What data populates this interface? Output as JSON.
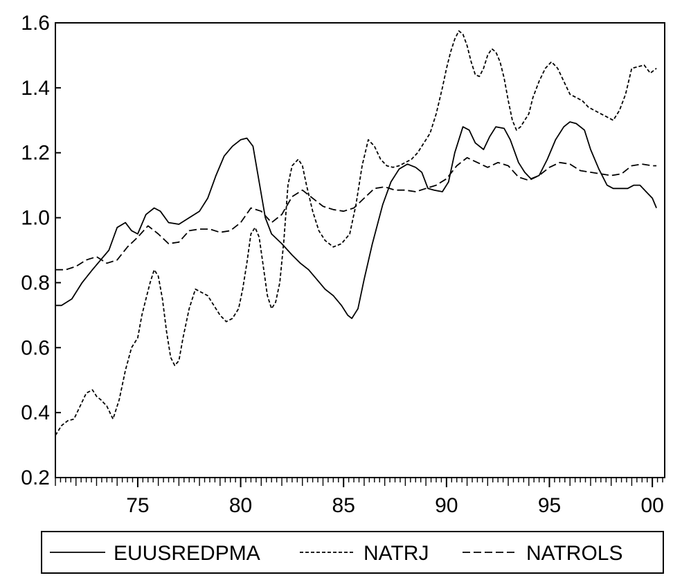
{
  "chart_data": {
    "type": "line",
    "title": "",
    "xlabel": "",
    "ylabel": "",
    "xlim": [
      1971,
      2000.6
    ],
    "ylim": [
      0.2,
      1.6
    ],
    "y_ticks": [
      {
        "value": 0.2,
        "label": "0.2"
      },
      {
        "value": 0.4,
        "label": "0.4"
      },
      {
        "value": 0.6,
        "label": "0.6"
      },
      {
        "value": 0.8,
        "label": "0.8"
      },
      {
        "value": 1.0,
        "label": "1.0"
      },
      {
        "value": 1.2,
        "label": "1.2"
      },
      {
        "value": 1.4,
        "label": "1.4"
      },
      {
        "value": 1.6,
        "label": "1.6"
      }
    ],
    "x_ticks": [
      {
        "value": 1975,
        "label": "75"
      },
      {
        "value": 1980,
        "label": "80"
      },
      {
        "value": 1985,
        "label": "85"
      },
      {
        "value": 1990,
        "label": "90"
      },
      {
        "value": 1995,
        "label": "95"
      },
      {
        "value": 2000,
        "label": "00"
      }
    ],
    "grid": false,
    "legend_position": "bottom",
    "series": [
      {
        "name": "EUUSREDPMA",
        "dash": "solid",
        "color": "#000000",
        "x": [
          1971.0,
          1971.3,
          1971.8,
          1972.3,
          1972.8,
          1973.2,
          1973.6,
          1974.0,
          1974.4,
          1974.7,
          1975.0,
          1975.4,
          1975.8,
          1976.1,
          1976.5,
          1977.0,
          1977.5,
          1978.0,
          1978.4,
          1978.8,
          1979.2,
          1979.6,
          1980.0,
          1980.3,
          1980.6,
          1980.9,
          1981.2,
          1981.5,
          1982.0,
          1982.5,
          1982.9,
          1983.3,
          1983.7,
          1984.1,
          1984.5,
          1984.9,
          1985.2,
          1985.4,
          1985.7,
          1986.0,
          1986.4,
          1986.9,
          1987.3,
          1987.7,
          1988.1,
          1988.5,
          1988.8,
          1989.1,
          1989.4,
          1989.8,
          1990.1,
          1990.4,
          1990.8,
          1991.1,
          1991.4,
          1991.8,
          1992.1,
          1992.4,
          1992.8,
          1993.1,
          1993.5,
          1993.8,
          1994.1,
          1994.5,
          1994.9,
          1995.3,
          1995.7,
          1996.0,
          1996.3,
          1996.7,
          1997.0,
          1997.4,
          1997.8,
          1998.1,
          1998.4,
          1998.8,
          1999.1,
          1999.4,
          1999.7,
          2000.0,
          2000.2
        ],
        "y": [
          0.73,
          0.73,
          0.75,
          0.8,
          0.84,
          0.87,
          0.9,
          0.97,
          0.985,
          0.96,
          0.95,
          1.01,
          1.03,
          1.02,
          0.985,
          0.98,
          1.0,
          1.02,
          1.06,
          1.13,
          1.19,
          1.22,
          1.24,
          1.245,
          1.22,
          1.11,
          1.0,
          0.95,
          0.92,
          0.885,
          0.86,
          0.84,
          0.81,
          0.78,
          0.76,
          0.73,
          0.7,
          0.69,
          0.72,
          0.81,
          0.92,
          1.04,
          1.11,
          1.15,
          1.165,
          1.155,
          1.14,
          1.09,
          1.085,
          1.08,
          1.11,
          1.2,
          1.28,
          1.27,
          1.23,
          1.21,
          1.25,
          1.28,
          1.275,
          1.24,
          1.17,
          1.14,
          1.12,
          1.13,
          1.18,
          1.24,
          1.28,
          1.295,
          1.29,
          1.27,
          1.21,
          1.15,
          1.1,
          1.09,
          1.09,
          1.09,
          1.1,
          1.1,
          1.08,
          1.06,
          1.03
        ]
      },
      {
        "name": "NATRJ",
        "dash": "dotted",
        "color": "#000000",
        "x": [
          1971.0,
          1971.3,
          1971.6,
          1971.9,
          1972.2,
          1972.5,
          1972.8,
          1973.0,
          1973.2,
          1973.5,
          1973.8,
          1974.1,
          1974.4,
          1974.7,
          1975.0,
          1975.2,
          1975.4,
          1975.6,
          1975.8,
          1976.0,
          1976.2,
          1976.4,
          1976.6,
          1976.8,
          1977.0,
          1977.2,
          1977.5,
          1977.8,
          1978.1,
          1978.4,
          1978.7,
          1979.0,
          1979.3,
          1979.6,
          1979.9,
          1980.1,
          1980.3,
          1980.5,
          1980.7,
          1980.9,
          1981.1,
          1981.3,
          1981.5,
          1981.7,
          1981.9,
          1982.1,
          1982.3,
          1982.5,
          1982.8,
          1983.0,
          1983.2,
          1983.5,
          1983.8,
          1984.1,
          1984.5,
          1984.9,
          1985.3,
          1985.6,
          1985.9,
          1986.2,
          1986.5,
          1986.8,
          1987.1,
          1987.4,
          1987.7,
          1988.0,
          1988.3,
          1988.6,
          1988.9,
          1989.2,
          1989.5,
          1989.8,
          1990.0,
          1990.2,
          1990.4,
          1990.6,
          1990.8,
          1991.0,
          1991.2,
          1991.4,
          1991.6,
          1991.8,
          1992.0,
          1992.2,
          1992.4,
          1992.6,
          1992.8,
          1993.0,
          1993.2,
          1993.4,
          1993.6,
          1993.8,
          1994.0,
          1994.2,
          1994.5,
          1994.8,
          1995.1,
          1995.4,
          1995.7,
          1996.0,
          1996.3,
          1996.6,
          1996.9,
          1997.2,
          1997.5,
          1997.8,
          1998.1,
          1998.4,
          1998.7,
          1999.0,
          1999.3,
          1999.6,
          1999.9,
          2000.2
        ],
        "y": [
          0.33,
          0.36,
          0.375,
          0.38,
          0.42,
          0.46,
          0.47,
          0.45,
          0.44,
          0.42,
          0.38,
          0.44,
          0.53,
          0.6,
          0.63,
          0.7,
          0.75,
          0.8,
          0.84,
          0.82,
          0.75,
          0.65,
          0.57,
          0.545,
          0.56,
          0.63,
          0.72,
          0.78,
          0.77,
          0.76,
          0.73,
          0.7,
          0.68,
          0.69,
          0.72,
          0.78,
          0.86,
          0.95,
          0.97,
          0.94,
          0.85,
          0.76,
          0.72,
          0.74,
          0.8,
          0.93,
          1.1,
          1.16,
          1.18,
          1.16,
          1.1,
          1.02,
          0.96,
          0.93,
          0.91,
          0.92,
          0.95,
          1.04,
          1.16,
          1.24,
          1.22,
          1.18,
          1.16,
          1.155,
          1.16,
          1.17,
          1.18,
          1.2,
          1.23,
          1.26,
          1.32,
          1.4,
          1.46,
          1.51,
          1.55,
          1.575,
          1.565,
          1.53,
          1.48,
          1.44,
          1.435,
          1.46,
          1.5,
          1.52,
          1.51,
          1.48,
          1.43,
          1.36,
          1.3,
          1.27,
          1.28,
          1.3,
          1.32,
          1.37,
          1.42,
          1.46,
          1.48,
          1.46,
          1.42,
          1.38,
          1.37,
          1.36,
          1.34,
          1.33,
          1.32,
          1.31,
          1.3,
          1.33,
          1.38,
          1.46,
          1.465,
          1.47,
          1.445,
          1.46
        ]
      },
      {
        "name": "NATROLS",
        "dash": "dashed",
        "color": "#000000",
        "x": [
          1971.0,
          1971.5,
          1972.0,
          1972.5,
          1973.0,
          1973.5,
          1974.0,
          1974.5,
          1975.0,
          1975.5,
          1976.0,
          1976.5,
          1977.0,
          1977.5,
          1978.0,
          1978.5,
          1979.0,
          1979.5,
          1980.0,
          1980.5,
          1981.0,
          1981.5,
          1982.0,
          1982.5,
          1983.0,
          1983.5,
          1984.0,
          1984.5,
          1985.0,
          1985.5,
          1986.0,
          1986.5,
          1987.0,
          1987.5,
          1988.0,
          1988.5,
          1989.0,
          1989.5,
          1990.0,
          1990.5,
          1991.0,
          1991.5,
          1992.0,
          1992.5,
          1993.0,
          1993.5,
          1994.0,
          1994.5,
          1995.0,
          1995.5,
          1996.0,
          1996.5,
          1997.0,
          1997.5,
          1998.0,
          1998.5,
          1999.0,
          1999.5,
          2000.0,
          2000.2
        ],
        "y": [
          0.84,
          0.84,
          0.85,
          0.87,
          0.88,
          0.86,
          0.87,
          0.91,
          0.94,
          0.975,
          0.95,
          0.92,
          0.925,
          0.96,
          0.965,
          0.965,
          0.955,
          0.96,
          0.985,
          1.03,
          1.02,
          0.985,
          1.01,
          1.065,
          1.085,
          1.06,
          1.035,
          1.025,
          1.02,
          1.03,
          1.06,
          1.09,
          1.095,
          1.085,
          1.085,
          1.08,
          1.09,
          1.1,
          1.12,
          1.16,
          1.185,
          1.17,
          1.155,
          1.17,
          1.16,
          1.125,
          1.115,
          1.13,
          1.155,
          1.17,
          1.165,
          1.145,
          1.14,
          1.135,
          1.13,
          1.135,
          1.16,
          1.165,
          1.16,
          1.16
        ]
      }
    ]
  }
}
